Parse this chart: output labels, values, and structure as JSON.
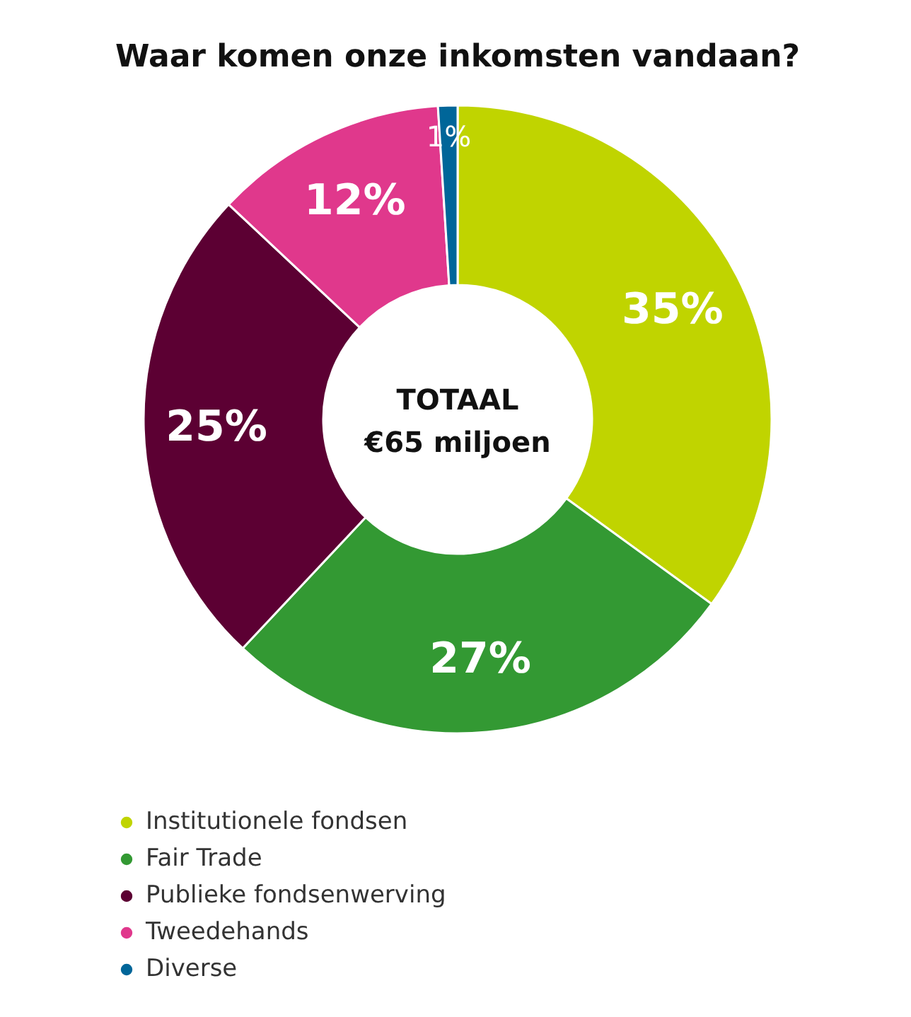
{
  "chart_data": {
    "type": "donut",
    "title": "Waar komen onze inkomsten vandaan?",
    "categories": [
      "Institutionele fondsen",
      "Fair Trade",
      "Publieke fondsenwerving",
      "Tweedehands",
      "Diverse"
    ],
    "values": [
      35,
      27,
      25,
      12,
      1
    ],
    "colors": [
      "#c0d400",
      "#339933",
      "#5c0033",
      "#e0388c",
      "#006699"
    ],
    "value_labels": [
      "35%",
      "27%",
      "25%",
      "12%",
      "1%"
    ],
    "annotations": [
      "TOTAAL",
      "€65 miljoen"
    ],
    "legend": "bottom left"
  }
}
